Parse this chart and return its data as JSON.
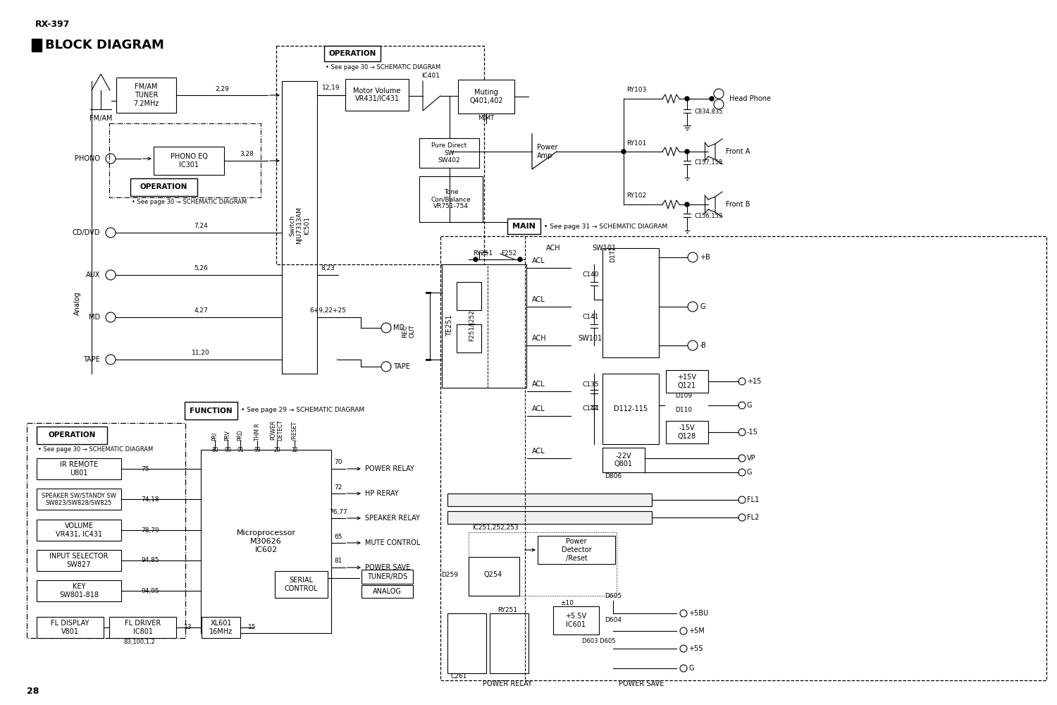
{
  "title": "RX-397",
  "subtitle": "BLOCK DIAGRAM",
  "bg_color": "#ffffff",
  "line_color": "#000000",
  "page_number": "28"
}
